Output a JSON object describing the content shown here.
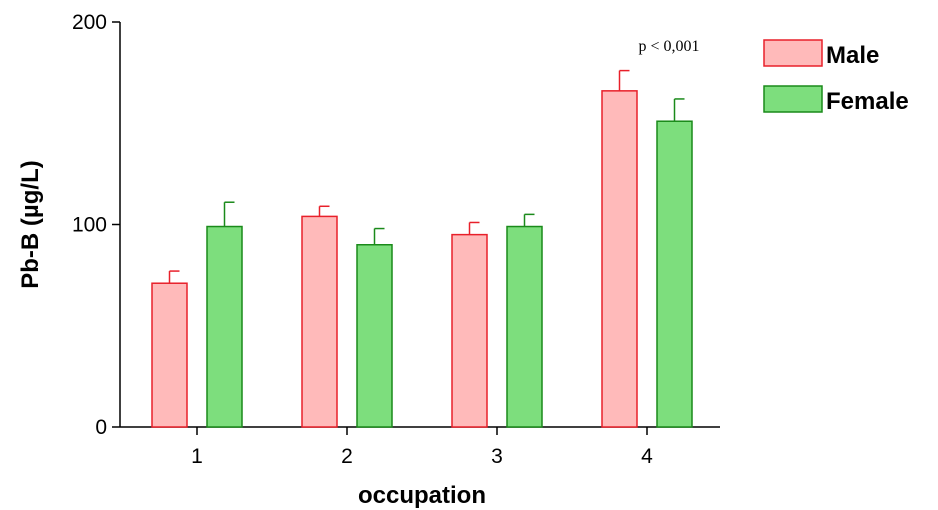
{
  "chart_data": {
    "type": "bar",
    "title": "",
    "xlabel": "occupation",
    "ylabel": "Pb-B (µg/L)",
    "ylim": [
      0,
      200
    ],
    "yticks": [
      0,
      100,
      200
    ],
    "categories": [
      "1",
      "2",
      "3",
      "4"
    ],
    "series": [
      {
        "name": "Male",
        "values": [
          71,
          104,
          95,
          166
        ],
        "errors": [
          6,
          5,
          6,
          10
        ],
        "fill": "#ffbaba",
        "stroke": "#e8202a"
      },
      {
        "name": "Female",
        "values": [
          99,
          90,
          99,
          151
        ],
        "errors": [
          12,
          8,
          6,
          11
        ],
        "fill": "#7dde7d",
        "stroke": "#1a8a1a"
      }
    ],
    "annotations": [
      {
        "text": "p < 0,001",
        "category": "4"
      }
    ],
    "legend_position": "top-right",
    "grid": false
  }
}
